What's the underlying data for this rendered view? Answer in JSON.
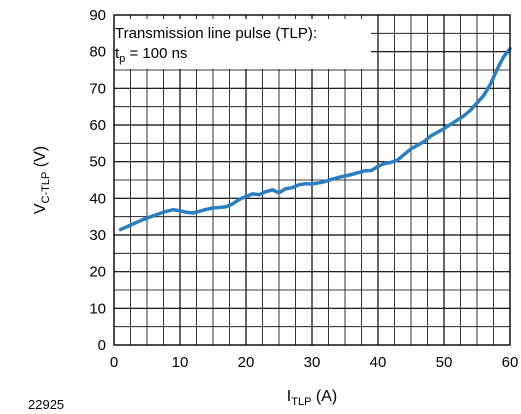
{
  "chart_data": {
    "type": "line",
    "figure_id": "22925",
    "xlabel": {
      "main": "I",
      "sub": "TLP",
      "unit": " (A)"
    },
    "ylabel": {
      "main": "V",
      "sub": "C-TLP",
      "unit": " (V)"
    },
    "xlim": [
      0,
      60
    ],
    "ylim": [
      0,
      90
    ],
    "x_ticks": [
      0,
      10,
      20,
      30,
      40,
      50,
      60
    ],
    "y_ticks": [
      0,
      10,
      20,
      30,
      40,
      50,
      60,
      70,
      80,
      90
    ],
    "x_grid_step": 2.5,
    "y_grid_step": 5,
    "grid": true,
    "annotation": {
      "line1": "Transmission line pulse (TLP):",
      "line2_main": "t",
      "line2_sub": "p",
      "line2_rest": " = 100 ns",
      "placement": "top-left"
    },
    "colors": {
      "series": "#2a7fc1",
      "grid": "#000000"
    },
    "series": [
      {
        "x": [
          1,
          2,
          3,
          4,
          5,
          6,
          7,
          8,
          9,
          10,
          11,
          12,
          13,
          14,
          15,
          16,
          17,
          18,
          19,
          20,
          21,
          22,
          23,
          24,
          25,
          26,
          27,
          28,
          29,
          30,
          31,
          32,
          33,
          34,
          35,
          36,
          37,
          38,
          39,
          40,
          41,
          42,
          43,
          44,
          45,
          46,
          47,
          48,
          49,
          50,
          51,
          52,
          53,
          54,
          55,
          56,
          57,
          58,
          59,
          60
        ],
        "y": [
          31.5,
          32.3,
          33.1,
          33.9,
          34.6,
          35.3,
          35.9,
          36.5,
          36.9,
          36.6,
          36.2,
          36.0,
          36.5,
          37.0,
          37.4,
          37.5,
          37.7,
          38.5,
          39.7,
          40.5,
          41.2,
          41.0,
          41.8,
          42.3,
          41.5,
          42.6,
          42.9,
          43.7,
          44.0,
          43.9,
          44.2,
          44.6,
          45.2,
          45.7,
          46.1,
          46.5,
          47.0,
          47.5,
          47.6,
          48.7,
          49.5,
          49.8,
          50.5,
          52.0,
          53.5,
          54.5,
          55.5,
          57.0,
          58.0,
          59.0,
          60.2,
          61.3,
          62.5,
          64.0,
          66.0,
          68.0,
          71.0,
          75.0,
          78.5,
          80.8
        ]
      }
    ]
  }
}
